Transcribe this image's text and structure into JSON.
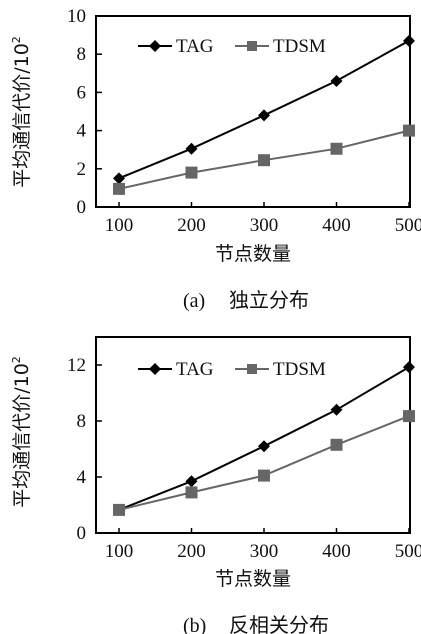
{
  "chart_data": [
    {
      "type": "line",
      "caption_label": "(a)",
      "caption_text": "独立分布",
      "xlabel": "节点数量",
      "ylabel": "平均通信代价/10",
      "ylabel_sup": "2",
      "categories": [
        "100",
        "200",
        "300",
        "400",
        "500"
      ],
      "ylim": [
        0,
        10
      ],
      "yticks": [
        "0",
        "2",
        "4",
        "6",
        "8",
        "10"
      ],
      "legend_position": "top-left",
      "series": [
        {
          "name": "TAG",
          "values": [
            1.5,
            3.05,
            4.8,
            6.6,
            8.7
          ],
          "color": "#000000",
          "marker": "diamond"
        },
        {
          "name": "TDSM",
          "values": [
            0.95,
            1.8,
            2.45,
            3.05,
            4.0
          ],
          "color": "#666666",
          "marker": "square"
        }
      ]
    },
    {
      "type": "line",
      "caption_label": "(b)",
      "caption_text": "反相关分布",
      "xlabel": "节点数量",
      "ylabel": "平均通信代价/10",
      "ylabel_sup": "2",
      "categories": [
        "100",
        "200",
        "300",
        "400",
        "500"
      ],
      "ylim": [
        0,
        14
      ],
      "yticks": [
        "0",
        "4",
        "8",
        "12"
      ],
      "legend_position": "top-left",
      "series": [
        {
          "name": "TAG",
          "values": [
            1.65,
            3.7,
            6.2,
            8.8,
            11.85
          ],
          "color": "#000000",
          "marker": "diamond"
        },
        {
          "name": "TDSM",
          "values": [
            1.65,
            2.9,
            4.1,
            6.3,
            8.35
          ],
          "color": "#666666",
          "marker": "square"
        }
      ]
    }
  ]
}
